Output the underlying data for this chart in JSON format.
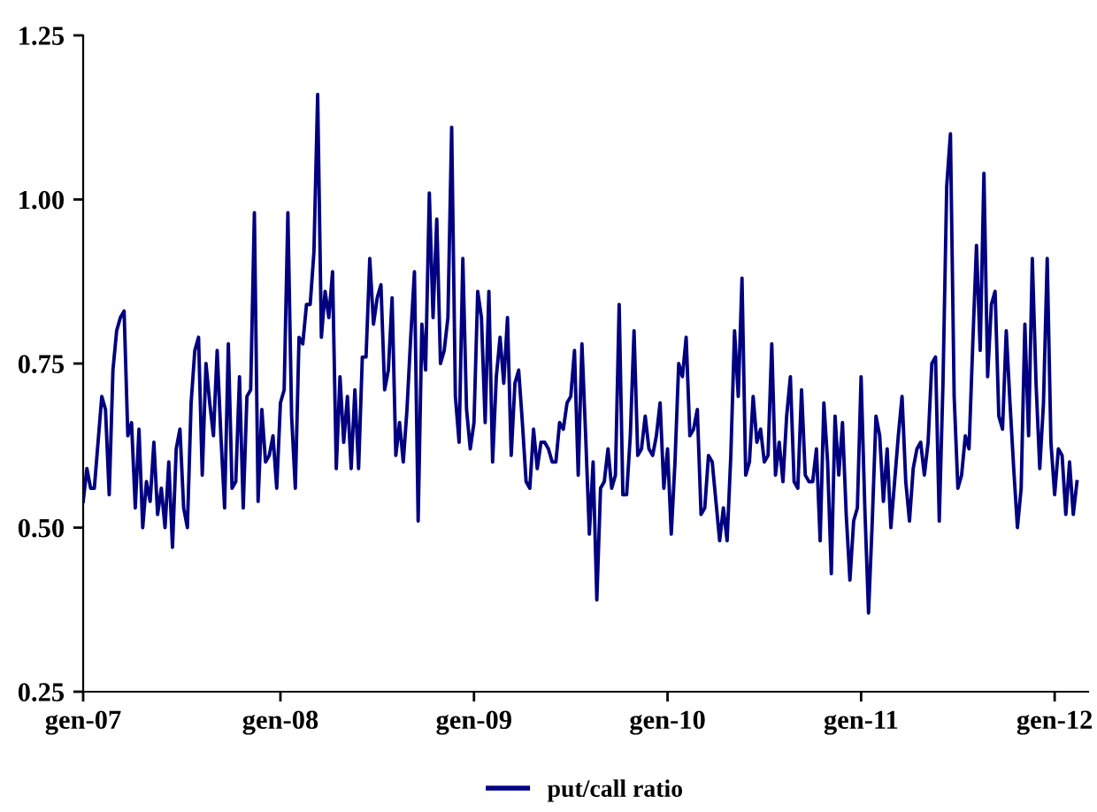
{
  "chart_data": {
    "type": "line",
    "categories": [
      "gen-07",
      null,
      null,
      null,
      null,
      null,
      null,
      null,
      null,
      null,
      null,
      null,
      null,
      null,
      null,
      null,
      null,
      null,
      null,
      null,
      null,
      null,
      null,
      null,
      null,
      null,
      null,
      null,
      null,
      null,
      null,
      null,
      null,
      null,
      null,
      null,
      null,
      null,
      null,
      null,
      null,
      null,
      null,
      null,
      null,
      null,
      null,
      null,
      null,
      null,
      null,
      null,
      null,
      "gen-08",
      null,
      null,
      null,
      null,
      null,
      null,
      null,
      null,
      null,
      null,
      null,
      null,
      null,
      null,
      null,
      null,
      null,
      null,
      null,
      null,
      null,
      null,
      null,
      null,
      null,
      null,
      null,
      null,
      null,
      null,
      null,
      null,
      null,
      null,
      null,
      null,
      null,
      null,
      null,
      null,
      null,
      null,
      null,
      null,
      null,
      null,
      null,
      null,
      null,
      null,
      null,
      "gen-09",
      null,
      null,
      null,
      null,
      null,
      null,
      null,
      null,
      null,
      null,
      null,
      null,
      null,
      null,
      null,
      null,
      null,
      null,
      null,
      null,
      null,
      null,
      null,
      null,
      null,
      null,
      null,
      null,
      null,
      null,
      null,
      null,
      null,
      null,
      null,
      null,
      null,
      null,
      null,
      null,
      null,
      null,
      null,
      null,
      null,
      null,
      null,
      null,
      null,
      null,
      null,
      "gen-10",
      null,
      null,
      null,
      null,
      null,
      null,
      null,
      null,
      null,
      null,
      null,
      null,
      null,
      null,
      null,
      null,
      null,
      null,
      null,
      null,
      null,
      null,
      null,
      null,
      null,
      null,
      null,
      null,
      null,
      null,
      null,
      null,
      null,
      null,
      null,
      null,
      null,
      null,
      null,
      null,
      null,
      null,
      null,
      null,
      null,
      null,
      null,
      null,
      null,
      null,
      null,
      "gen-11",
      null,
      null,
      null,
      null,
      null,
      null,
      null,
      null,
      null,
      null,
      null,
      null,
      null,
      null,
      null,
      null,
      null,
      null,
      null,
      null,
      null,
      null,
      null,
      null,
      null,
      null,
      null,
      null,
      null,
      null,
      null,
      null,
      null,
      null,
      null,
      null,
      null,
      null,
      null,
      null,
      null,
      null,
      null,
      null,
      null,
      null,
      null,
      null,
      null,
      null,
      null,
      "gen-12",
      null,
      null,
      null,
      null,
      null,
      null
    ],
    "series": [
      {
        "name": "put/call ratio",
        "color": "#000080",
        "values": [
          0.54,
          0.59,
          0.56,
          0.56,
          0.63,
          0.7,
          0.68,
          0.55,
          0.74,
          0.8,
          0.82,
          0.83,
          0.64,
          0.66,
          0.53,
          0.65,
          0.5,
          0.57,
          0.54,
          0.63,
          0.52,
          0.56,
          0.5,
          0.6,
          0.47,
          0.62,
          0.65,
          0.53,
          0.5,
          0.69,
          0.77,
          0.79,
          0.58,
          0.75,
          0.69,
          0.64,
          0.77,
          0.64,
          0.53,
          0.78,
          0.56,
          0.57,
          0.73,
          0.53,
          0.7,
          0.71,
          0.98,
          0.54,
          0.68,
          0.6,
          0.61,
          0.64,
          0.56,
          0.69,
          0.71,
          0.98,
          0.67,
          0.56,
          0.79,
          0.78,
          0.84,
          0.84,
          0.92,
          1.16,
          0.79,
          0.86,
          0.82,
          0.89,
          0.59,
          0.73,
          0.63,
          0.7,
          0.59,
          0.71,
          0.59,
          0.76,
          0.76,
          0.91,
          0.81,
          0.85,
          0.87,
          0.71,
          0.74,
          0.85,
          0.61,
          0.66,
          0.6,
          0.68,
          0.79,
          0.89,
          0.51,
          0.81,
          0.74,
          1.01,
          0.82,
          0.97,
          0.75,
          0.77,
          0.82,
          1.11,
          0.7,
          0.63,
          0.91,
          0.68,
          0.62,
          0.66,
          0.86,
          0.82,
          0.66,
          0.86,
          0.6,
          0.73,
          0.79,
          0.72,
          0.82,
          0.61,
          0.72,
          0.74,
          0.66,
          0.57,
          0.56,
          0.65,
          0.59,
          0.63,
          0.63,
          0.62,
          0.6,
          0.6,
          0.66,
          0.65,
          0.69,
          0.7,
          0.77,
          0.58,
          0.78,
          0.64,
          0.49,
          0.6,
          0.39,
          0.56,
          0.57,
          0.62,
          0.56,
          0.58,
          0.84,
          0.55,
          0.55,
          0.64,
          0.8,
          0.61,
          0.62,
          0.67,
          0.62,
          0.61,
          0.64,
          0.69,
          0.56,
          0.62,
          0.49,
          0.6,
          0.75,
          0.73,
          0.79,
          0.64,
          0.65,
          0.68,
          0.52,
          0.53,
          0.61,
          0.6,
          0.54,
          0.48,
          0.53,
          0.48,
          0.61,
          0.8,
          0.7,
          0.88,
          0.58,
          0.6,
          0.7,
          0.63,
          0.65,
          0.6,
          0.61,
          0.78,
          0.58,
          0.63,
          0.57,
          0.67,
          0.73,
          0.57,
          0.56,
          0.71,
          0.58,
          0.57,
          0.57,
          0.62,
          0.48,
          0.69,
          0.6,
          0.43,
          0.67,
          0.58,
          0.66,
          0.52,
          0.42,
          0.51,
          0.53,
          0.73,
          0.53,
          0.37,
          0.51,
          0.67,
          0.64,
          0.54,
          0.62,
          0.5,
          0.57,
          0.64,
          0.7,
          0.57,
          0.51,
          0.59,
          0.62,
          0.63,
          0.58,
          0.63,
          0.75,
          0.76,
          0.51,
          0.72,
          1.02,
          1.1,
          0.7,
          0.56,
          0.58,
          0.64,
          0.62,
          0.78,
          0.93,
          0.77,
          1.04,
          0.73,
          0.84,
          0.86,
          0.67,
          0.65,
          0.8,
          0.69,
          0.59,
          0.5,
          0.56,
          0.81,
          0.64,
          0.91,
          0.72,
          0.59,
          0.69,
          0.91,
          0.63,
          0.55,
          0.62,
          0.61,
          0.52,
          0.6,
          0.52,
          0.57
        ]
      }
    ],
    "ylim": [
      0.25,
      1.25
    ],
    "yticks": [
      {
        "value": 0.25,
        "label": "0.25"
      },
      {
        "value": 0.5,
        "label": "0.50"
      },
      {
        "value": 0.75,
        "label": "0.75"
      },
      {
        "value": 1.0,
        "label": "1.00"
      },
      {
        "value": 1.25,
        "label": "1.25"
      }
    ],
    "grid": false,
    "legend": "bottom",
    "marker": "none",
    "line_style": "solid"
  }
}
